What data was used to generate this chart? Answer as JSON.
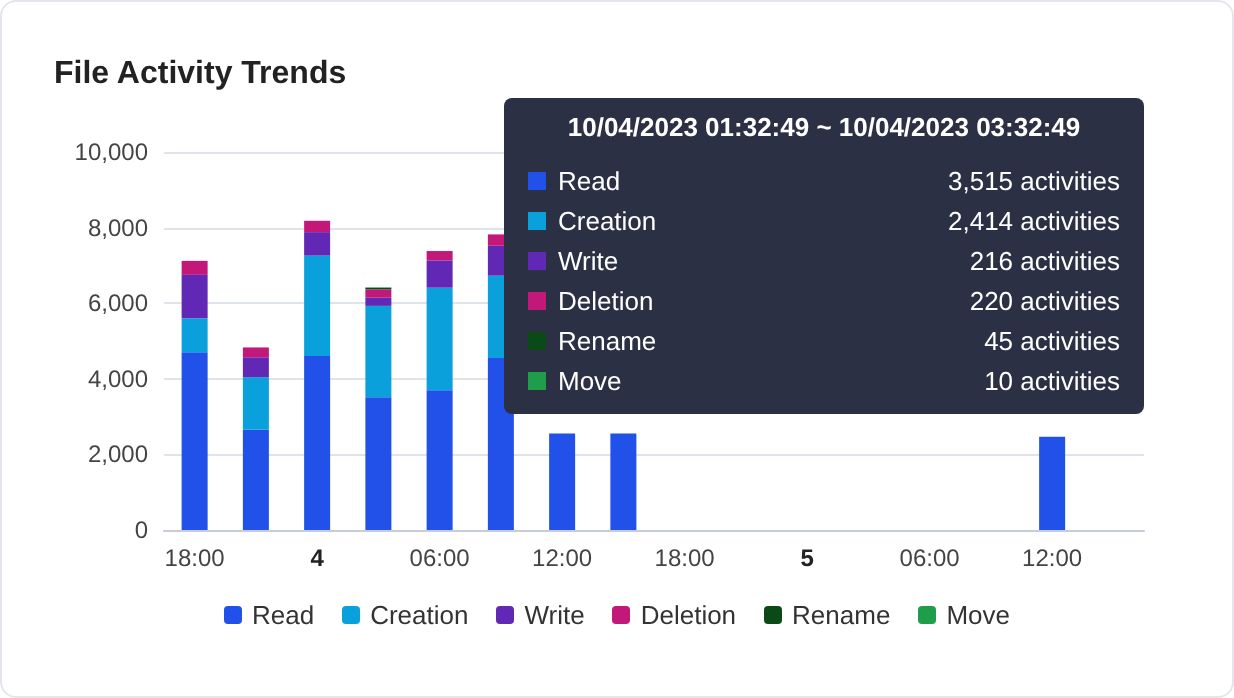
{
  "chart_data": {
    "type": "bar",
    "title": "File Activity Trends",
    "stacked": true,
    "categories": [
      "18:00",
      null,
      "4",
      null,
      "06:00",
      null,
      "12:00",
      null,
      "18:00",
      null,
      "5",
      null,
      "06:00",
      null,
      "12:00",
      null
    ],
    "series": [
      {
        "name": "Read",
        "color": "#2151e8",
        "values": [
          4700,
          2650,
          4600,
          3515,
          3700,
          4550,
          2550,
          2550,
          null,
          null,
          null,
          null,
          null,
          null,
          2470,
          null
        ]
      },
      {
        "name": "Creation",
        "color": "#0aa0dc",
        "values": [
          900,
          1390,
          2660,
          2414,
          2710,
          2180,
          null,
          null,
          null,
          null,
          null,
          null,
          null,
          null,
          null,
          null
        ]
      },
      {
        "name": "Write",
        "color": "#6127b5",
        "values": [
          1150,
          530,
          620,
          216,
          720,
          790,
          null,
          null,
          null,
          null,
          null,
          null,
          null,
          null,
          null,
          null
        ]
      },
      {
        "name": "Deletion",
        "color": "#c2187a",
        "values": [
          370,
          260,
          300,
          220,
          250,
          300,
          null,
          null,
          null,
          null,
          null,
          null,
          null,
          null,
          null,
          null
        ]
      },
      {
        "name": "Rename",
        "color": "#0b4a17",
        "values": [
          null,
          null,
          null,
          45,
          null,
          null,
          null,
          null,
          null,
          null,
          null,
          null,
          null,
          null,
          null,
          null
        ]
      },
      {
        "name": "Move",
        "color": "#1e9e4a",
        "values": [
          null,
          null,
          null,
          10,
          null,
          null,
          null,
          null,
          null,
          null,
          null,
          null,
          null,
          null,
          null,
          null
        ]
      }
    ],
    "ylim": [
      0,
      10000
    ],
    "yticks": [
      0,
      {
        "value": 2000,
        "label": "2,000"
      },
      {
        "value": 4000,
        "label": "4,000"
      },
      {
        "value": 6000,
        "label": "6,000"
      },
      {
        "value": 8000,
        "label": "8,000"
      },
      {
        "value": 10000,
        "label": "10,000"
      }
    ],
    "grid": "y",
    "legend": "bottom",
    "annotations": [
      "10/04/2023 01:32:49 ~ 10/04/2023 03:32:49",
      "3,515 activities",
      "2,414 activities",
      "216 activities",
      "220 activities",
      "45 activities",
      "10 activities"
    ]
  }
}
